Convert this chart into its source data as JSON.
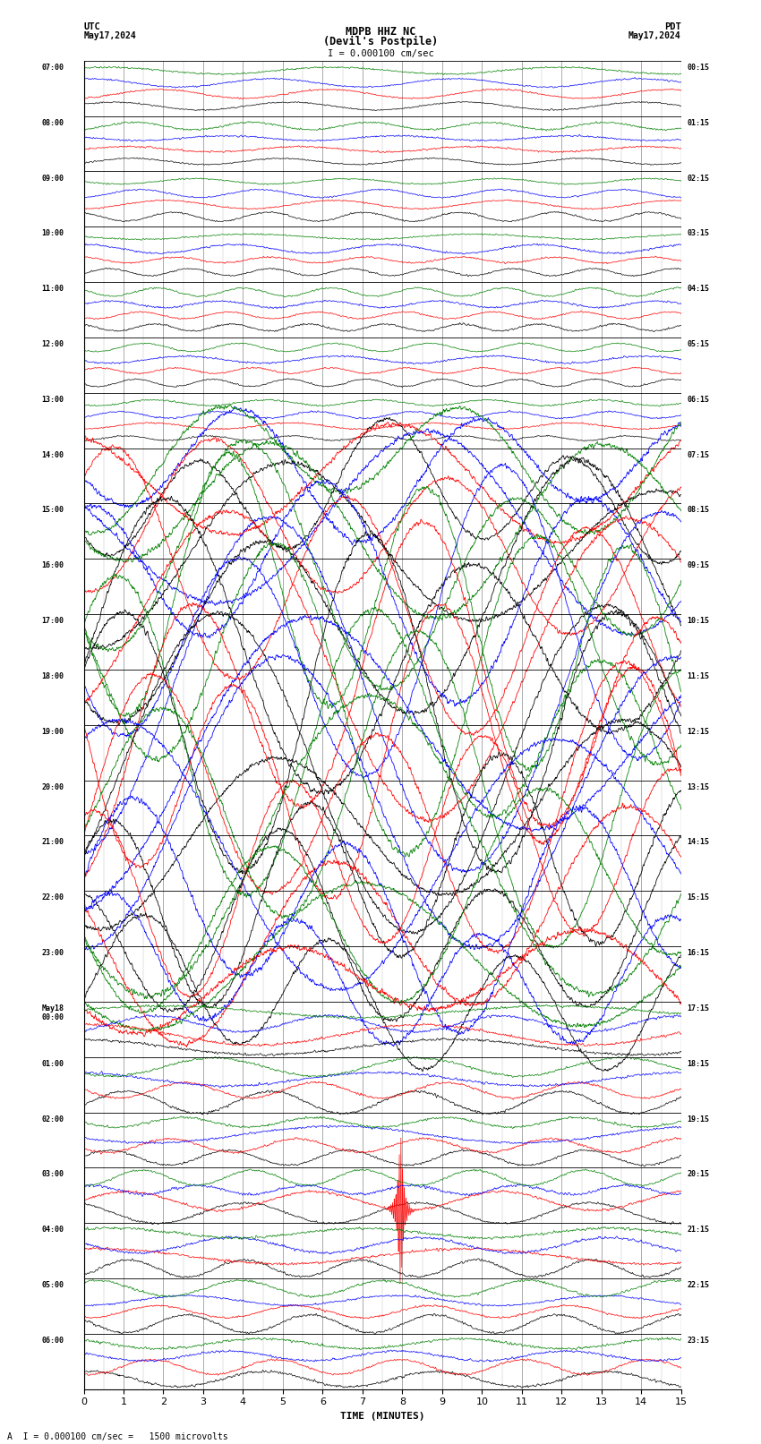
{
  "title_line1": "MDPB HHZ NC",
  "title_line2": "(Devil's Postpile)",
  "scale_label": "I = 0.000100 cm/sec",
  "left_label_top": "UTC",
  "left_label_date": "May17,2024",
  "right_label_top": "PDT",
  "right_label_date": "May17,2024",
  "xlabel": "TIME (MINUTES)",
  "bottom_note": "A  I = 0.000100 cm/sec =   1500 microvolts",
  "utc_times": [
    "07:00",
    "08:00",
    "09:00",
    "10:00",
    "11:00",
    "12:00",
    "13:00",
    "14:00",
    "15:00",
    "16:00",
    "17:00",
    "18:00",
    "19:00",
    "20:00",
    "21:00",
    "22:00",
    "23:00",
    "May18\n00:00",
    "01:00",
    "02:00",
    "03:00",
    "04:00",
    "05:00",
    "06:00"
  ],
  "pdt_times": [
    "00:15",
    "01:15",
    "02:15",
    "03:15",
    "04:15",
    "05:15",
    "06:15",
    "07:15",
    "08:15",
    "09:15",
    "10:15",
    "11:15",
    "12:15",
    "13:15",
    "14:15",
    "15:15",
    "16:15",
    "17:15",
    "18:15",
    "19:15",
    "20:15",
    "21:15",
    "22:15",
    "23:15"
  ],
  "n_rows": 24,
  "colors": [
    "black",
    "red",
    "blue",
    "green"
  ],
  "bg_color": "white",
  "grid_color": "#888888",
  "fig_width": 8.5,
  "fig_height": 16.13,
  "time_min": 0,
  "time_max": 15,
  "xticks": [
    0,
    1,
    2,
    3,
    4,
    5,
    6,
    7,
    8,
    9,
    10,
    11,
    12,
    13,
    14,
    15
  ]
}
